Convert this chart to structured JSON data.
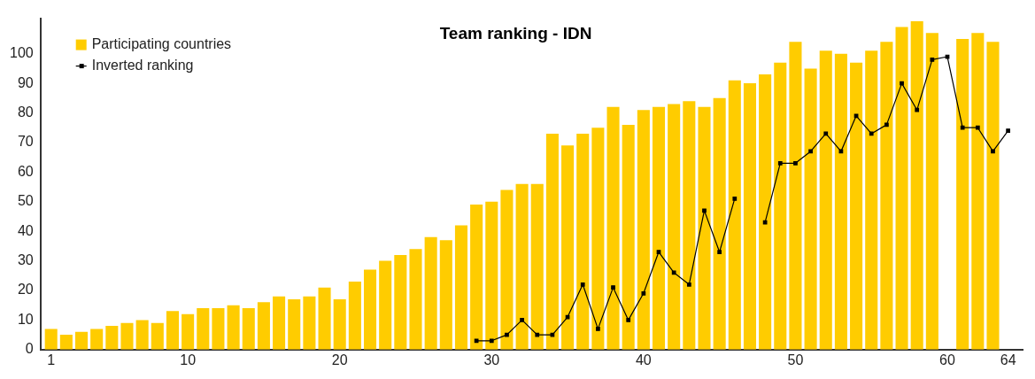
{
  "chart_data": {
    "type": "bar",
    "title": "Team ranking - IDN",
    "x": [
      1,
      2,
      3,
      4,
      5,
      6,
      7,
      8,
      9,
      10,
      11,
      12,
      13,
      14,
      15,
      16,
      17,
      18,
      19,
      20,
      21,
      22,
      23,
      24,
      25,
      26,
      27,
      28,
      29,
      30,
      31,
      32,
      33,
      34,
      35,
      36,
      37,
      38,
      39,
      40,
      41,
      42,
      43,
      44,
      45,
      46,
      47,
      48,
      49,
      50,
      51,
      52,
      53,
      54,
      55,
      56,
      57,
      58,
      59,
      60,
      61,
      62,
      63,
      64
    ],
    "series": [
      {
        "name": "Participating countries",
        "color": "#ffcc00",
        "values": [
          7,
          5,
          6,
          7,
          8,
          9,
          10,
          9,
          13,
          12,
          14,
          14,
          15,
          14,
          16,
          18,
          17,
          18,
          21,
          17,
          23,
          27,
          30,
          32,
          34,
          38,
          37,
          42,
          49,
          50,
          54,
          56,
          56,
          73,
          69,
          73,
          75,
          82,
          76,
          81,
          82,
          83,
          84,
          82,
          85,
          91,
          90,
          93,
          97,
          104,
          95,
          101,
          100,
          97,
          101,
          104,
          109,
          111,
          107,
          null,
          105,
          107,
          104,
          null
        ]
      },
      {
        "name": "Inverted ranking",
        "type": "line",
        "color": "#000000",
        "marker": "square",
        "values": [
          null,
          null,
          null,
          null,
          null,
          null,
          null,
          null,
          null,
          null,
          null,
          null,
          null,
          null,
          null,
          null,
          null,
          null,
          null,
          null,
          null,
          null,
          null,
          null,
          null,
          null,
          null,
          null,
          3,
          3,
          5,
          10,
          5,
          5,
          11,
          22,
          7,
          21,
          10,
          19,
          33,
          26,
          22,
          47,
          33,
          51,
          null,
          43,
          63,
          63,
          67,
          73,
          67,
          79,
          73,
          76,
          90,
          81,
          98,
          99,
          75,
          75,
          67,
          74
        ]
      }
    ],
    "xlim": [
      0.3,
      65
    ],
    "xticks": [
      1,
      10,
      20,
      30,
      40,
      50,
      60,
      64
    ],
    "ylim": [
      0,
      112
    ],
    "yticks": [
      0,
      10,
      20,
      30,
      40,
      50,
      60,
      70,
      80,
      90,
      100
    ],
    "grid": false,
    "legend": "top left"
  }
}
